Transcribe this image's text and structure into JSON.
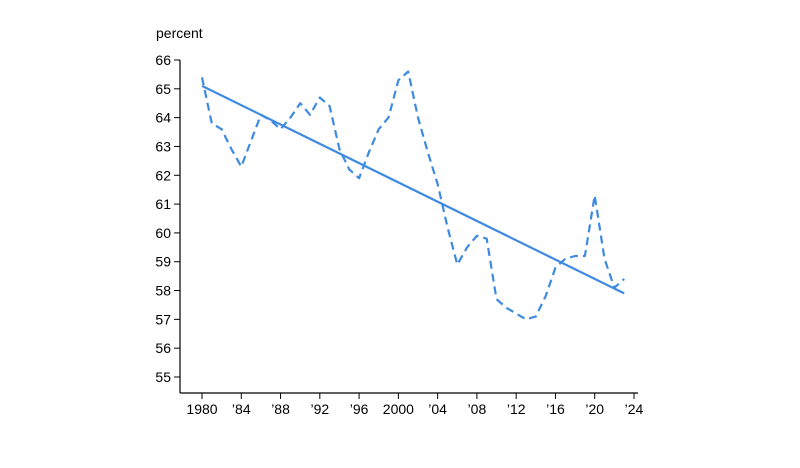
{
  "chart_data": {
    "type": "line",
    "ylabel": "percent",
    "ylim": [
      55,
      66
    ],
    "xlim": [
      1980,
      2024
    ],
    "y_ticks": [
      "55",
      "56",
      "57",
      "58",
      "59",
      "60",
      "61",
      "62",
      "63",
      "64",
      "65",
      "66"
    ],
    "x_ticks": [
      {
        "value": 1980,
        "label": "1980"
      },
      {
        "value": 1984,
        "label": "’84"
      },
      {
        "value": 1988,
        "label": "’88"
      },
      {
        "value": 1992,
        "label": "’92"
      },
      {
        "value": 1996,
        "label": "’96"
      },
      {
        "value": 2000,
        "label": "2000"
      },
      {
        "value": 2004,
        "label": "’04"
      },
      {
        "value": 2008,
        "label": "’08"
      },
      {
        "value": 2012,
        "label": "’12"
      },
      {
        "value": 2016,
        "label": "’16"
      },
      {
        "value": 2020,
        "label": "’20"
      },
      {
        "value": 2024,
        "label": "’24"
      }
    ],
    "grid": false,
    "legend": "none",
    "series": [
      {
        "style": "dashed",
        "color": "#3d8ae0",
        "x": [
          1980,
          1981,
          1982,
          1983,
          1984,
          1985,
          1986,
          1987,
          1988,
          1989,
          1990,
          1991,
          1992,
          1993,
          1994,
          1995,
          1996,
          1997,
          1998,
          1999,
          2000,
          2001,
          2002,
          2003,
          2004,
          2005,
          2006,
          2007,
          2008,
          2009,
          2010,
          2011,
          2012,
          2013,
          2014,
          2015,
          2016,
          2017,
          2018,
          2019,
          2020,
          2021,
          2022,
          2023
        ],
        "values": [
          65.4,
          63.8,
          63.6,
          62.9,
          62.3,
          63.2,
          64.1,
          63.9,
          63.6,
          64.0,
          64.5,
          64.1,
          64.7,
          64.4,
          62.9,
          62.2,
          61.9,
          62.8,
          63.6,
          64.0,
          65.3,
          65.6,
          64.0,
          62.8,
          61.7,
          60.2,
          58.9,
          59.5,
          59.9,
          59.8,
          57.7,
          57.4,
          57.2,
          57.0,
          57.1,
          57.8,
          58.8,
          59.1,
          59.2,
          59.2,
          61.3,
          59.1,
          58.1,
          58.4
        ]
      },
      {
        "style": "solid",
        "color": "#3d8ae0",
        "x": [
          1980,
          2023
        ],
        "values": [
          65.1,
          57.9
        ]
      }
    ]
  }
}
